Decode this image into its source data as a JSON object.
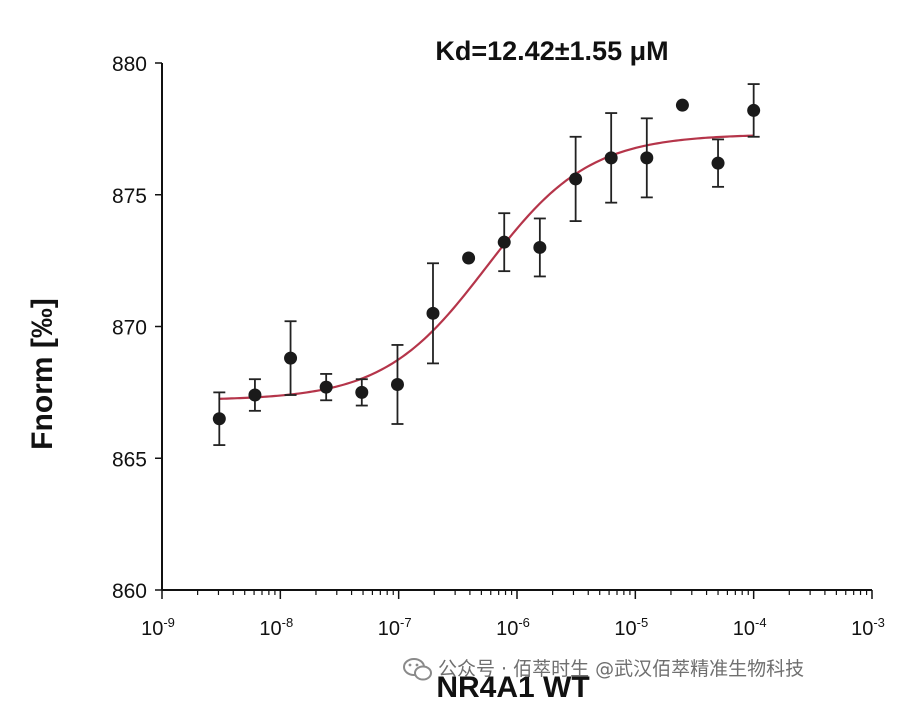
{
  "chart_data": {
    "type": "scatter",
    "title": "Kd=12.42±1.55 μM",
    "xlabel": "NR4A1 WT",
    "ylabel": "Fnorm [‰]",
    "x_scale": "log",
    "xlim": [
      1e-09,
      0.001
    ],
    "ylim": [
      860,
      880
    ],
    "yticks": [
      860,
      865,
      870,
      875,
      880
    ],
    "xtick_labels": [
      {
        "base": "10",
        "exp": "-9"
      },
      {
        "base": "10",
        "exp": "-8"
      },
      {
        "base": "10",
        "exp": "-7"
      },
      {
        "base": "10",
        "exp": "-6"
      },
      {
        "base": "10",
        "exp": "-5"
      },
      {
        "base": "10",
        "exp": "-4"
      },
      {
        "base": "10",
        "exp": "-3"
      }
    ],
    "grid": false,
    "series": [
      {
        "values": [
          {
            "x": 3.05e-09,
            "y": 866.5,
            "err": 1.0
          },
          {
            "x": 6.1e-09,
            "y": 867.4,
            "err": 0.6
          },
          {
            "x": 1.22e-08,
            "y": 868.8,
            "err": 1.4
          },
          {
            "x": 2.44e-08,
            "y": 867.7,
            "err": 0.5
          },
          {
            "x": 4.88e-08,
            "y": 867.5,
            "err": 0.5
          },
          {
            "x": 9.77e-08,
            "y": 867.8,
            "err": 1.5
          },
          {
            "x": 1.95e-07,
            "y": 870.5,
            "err": 1.9
          },
          {
            "x": 3.9e-07,
            "y": 872.6,
            "err": 0
          },
          {
            "x": 7.8e-07,
            "y": 873.2,
            "err": 1.1
          },
          {
            "x": 1.56e-06,
            "y": 873.0,
            "err": 1.1
          },
          {
            "x": 3.13e-06,
            "y": 875.6,
            "err": 1.6
          },
          {
            "x": 6.25e-06,
            "y": 876.4,
            "err": 1.7
          },
          {
            "x": 1.25e-05,
            "y": 876.4,
            "err": 1.5
          },
          {
            "x": 2.5e-05,
            "y": 878.4,
            "err": 0
          },
          {
            "x": 5e-05,
            "y": 876.2,
            "err": 0.9
          },
          {
            "x": 0.0001,
            "y": 878.2,
            "err": 1.0
          }
        ]
      }
    ],
    "fit": {
      "bottom": 867.2,
      "top": 877.3,
      "x_range": [
        3e-09,
        0.0001
      ]
    },
    "colors": {
      "points": "#1a1a1a",
      "errorbars": "#222222",
      "fit": "#b5354a",
      "axes": "#111111"
    }
  },
  "watermark": "公众号 · 佰萃时生 @武汉佰萃精准生物科技"
}
